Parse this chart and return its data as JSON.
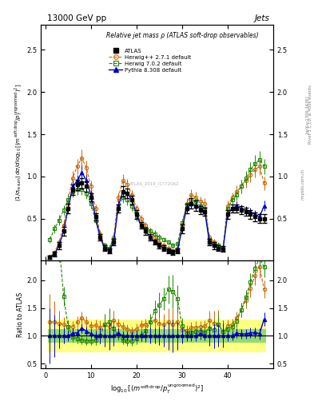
{
  "title_top": "13000 GeV pp",
  "title_right": "Jets",
  "plot_title": "Relative jet mass ρ (ATLAS soft-drop observables)",
  "watermark": "ATLAS_2019_I1772062",
  "rivet_text": "Rivet 3.1.10; ≥ 400k events",
  "arxiv_text": "[arXiv:1306.3436]",
  "ylabel_main": "(1/σ_resum) dσ/d log₁₀[(m^soft drop/p_T^ungroomed)²]",
  "ylabel_ratio": "Ratio to ATLAS",
  "xlabel_math": "log$_{10}$[(m$^{\\rm soft\\,drop}$/p$_T^{\\rm ungroomed}$)$^2$]",
  "atlas_color": "#000000",
  "herwig271_color": "#cc6600",
  "herwig702_color": "#228800",
  "pythia_color": "#0000cc",
  "xlim": [
    -1,
    50
  ],
  "ylim_main": [
    0.0,
    2.8
  ],
  "ylim_ratio": [
    0.42,
    2.35
  ],
  "yticks_main": [
    0.5,
    1.0,
    1.5,
    2.0,
    2.5
  ],
  "yticks_ratio": [
    0.5,
    1.0,
    1.5,
    2.0
  ],
  "xticks": [
    0,
    10,
    20,
    30,
    40
  ],
  "atlas_x": [
    1,
    2,
    3,
    4,
    5,
    6,
    7,
    8,
    9,
    10,
    11,
    12,
    13,
    14,
    15,
    16,
    17,
    18,
    19,
    20,
    21,
    22,
    23,
    24,
    25,
    26,
    27,
    28,
    29,
    30,
    31,
    32,
    33,
    34,
    35,
    36,
    37,
    38,
    39,
    40,
    41,
    42,
    43,
    44,
    45,
    46,
    47,
    48
  ],
  "atlas_y": [
    0.04,
    0.08,
    0.18,
    0.35,
    0.62,
    0.84,
    0.9,
    0.92,
    0.88,
    0.75,
    0.52,
    0.28,
    0.15,
    0.12,
    0.22,
    0.62,
    0.82,
    0.8,
    0.72,
    0.55,
    0.42,
    0.35,
    0.28,
    0.22,
    0.18,
    0.15,
    0.12,
    0.1,
    0.12,
    0.38,
    0.62,
    0.68,
    0.65,
    0.6,
    0.58,
    0.22,
    0.18,
    0.15,
    0.14,
    0.55,
    0.62,
    0.62,
    0.6,
    0.58,
    0.55,
    0.52,
    0.5,
    0.5
  ],
  "atlas_yerr": [
    0.02,
    0.03,
    0.04,
    0.05,
    0.06,
    0.06,
    0.06,
    0.06,
    0.06,
    0.05,
    0.04,
    0.04,
    0.03,
    0.03,
    0.04,
    0.05,
    0.06,
    0.06,
    0.05,
    0.05,
    0.04,
    0.04,
    0.04,
    0.03,
    0.03,
    0.03,
    0.03,
    0.03,
    0.03,
    0.05,
    0.06,
    0.06,
    0.06,
    0.05,
    0.05,
    0.04,
    0.04,
    0.03,
    0.03,
    0.05,
    0.05,
    0.05,
    0.05,
    0.05,
    0.05,
    0.05,
    0.05,
    0.05
  ],
  "h271_y": [
    0.05,
    0.1,
    0.22,
    0.42,
    0.72,
    0.98,
    1.12,
    1.22,
    1.1,
    0.88,
    0.62,
    0.32,
    0.18,
    0.14,
    0.28,
    0.75,
    0.95,
    0.9,
    0.78,
    0.62,
    0.5,
    0.42,
    0.35,
    0.28,
    0.22,
    0.18,
    0.15,
    0.12,
    0.15,
    0.42,
    0.68,
    0.78,
    0.75,
    0.7,
    0.68,
    0.28,
    0.22,
    0.18,
    0.15,
    0.65,
    0.75,
    0.82,
    0.88,
    0.95,
    1.02,
    1.08,
    1.12,
    0.92
  ],
  "h271_yerr": [
    0.02,
    0.03,
    0.04,
    0.05,
    0.07,
    0.08,
    0.09,
    0.1,
    0.09,
    0.07,
    0.05,
    0.04,
    0.03,
    0.03,
    0.04,
    0.06,
    0.08,
    0.07,
    0.06,
    0.05,
    0.04,
    0.04,
    0.04,
    0.04,
    0.03,
    0.03,
    0.03,
    0.03,
    0.03,
    0.05,
    0.06,
    0.07,
    0.07,
    0.06,
    0.06,
    0.04,
    0.04,
    0.04,
    0.03,
    0.06,
    0.06,
    0.07,
    0.08,
    0.08,
    0.09,
    0.09,
    0.1,
    0.08
  ],
  "h702_y": [
    0.25,
    0.38,
    0.48,
    0.6,
    0.72,
    0.82,
    0.85,
    0.85,
    0.8,
    0.68,
    0.48,
    0.28,
    0.18,
    0.15,
    0.25,
    0.62,
    0.75,
    0.72,
    0.65,
    0.52,
    0.42,
    0.38,
    0.35,
    0.32,
    0.28,
    0.25,
    0.22,
    0.18,
    0.2,
    0.45,
    0.65,
    0.72,
    0.7,
    0.65,
    0.62,
    0.25,
    0.2,
    0.18,
    0.15,
    0.62,
    0.72,
    0.78,
    0.88,
    0.98,
    1.08,
    1.15,
    1.2,
    1.12
  ],
  "h702_yerr": [
    0.04,
    0.05,
    0.06,
    0.06,
    0.07,
    0.07,
    0.07,
    0.07,
    0.07,
    0.06,
    0.05,
    0.04,
    0.03,
    0.03,
    0.04,
    0.05,
    0.06,
    0.06,
    0.06,
    0.05,
    0.04,
    0.04,
    0.04,
    0.04,
    0.04,
    0.03,
    0.03,
    0.03,
    0.03,
    0.05,
    0.06,
    0.06,
    0.06,
    0.06,
    0.06,
    0.04,
    0.03,
    0.03,
    0.03,
    0.06,
    0.06,
    0.07,
    0.08,
    0.08,
    0.09,
    0.1,
    0.1,
    0.09
  ],
  "py_y": [
    0.04,
    0.08,
    0.18,
    0.35,
    0.62,
    0.88,
    0.95,
    1.05,
    0.95,
    0.78,
    0.52,
    0.28,
    0.15,
    0.12,
    0.22,
    0.65,
    0.82,
    0.8,
    0.72,
    0.55,
    0.42,
    0.35,
    0.28,
    0.22,
    0.18,
    0.15,
    0.12,
    0.1,
    0.12,
    0.38,
    0.62,
    0.68,
    0.65,
    0.62,
    0.58,
    0.22,
    0.18,
    0.15,
    0.14,
    0.55,
    0.62,
    0.65,
    0.62,
    0.6,
    0.58,
    0.55,
    0.52,
    0.65
  ],
  "py_yerr": [
    0.02,
    0.03,
    0.04,
    0.05,
    0.06,
    0.07,
    0.07,
    0.08,
    0.07,
    0.06,
    0.05,
    0.04,
    0.03,
    0.03,
    0.04,
    0.05,
    0.06,
    0.06,
    0.06,
    0.05,
    0.04,
    0.04,
    0.04,
    0.03,
    0.03,
    0.03,
    0.03,
    0.03,
    0.03,
    0.05,
    0.06,
    0.06,
    0.06,
    0.06,
    0.05,
    0.04,
    0.04,
    0.03,
    0.03,
    0.05,
    0.05,
    0.05,
    0.05,
    0.05,
    0.05,
    0.05,
    0.05,
    0.06
  ],
  "yellow_rel_err": 0.3,
  "green_rel_err": 0.12
}
